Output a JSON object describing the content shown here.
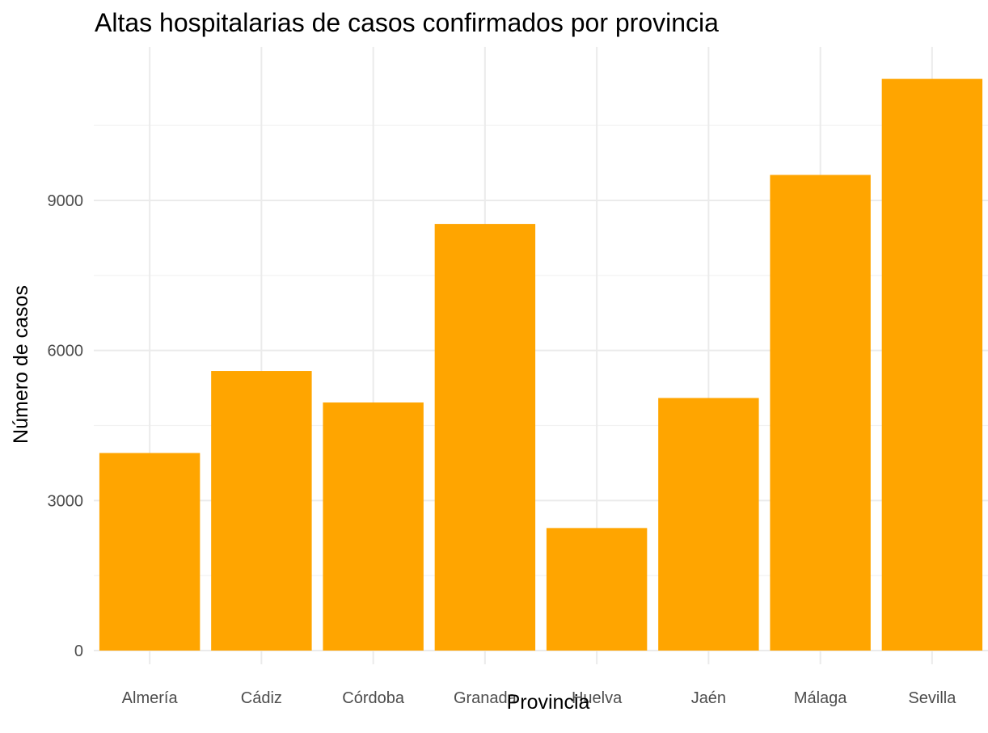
{
  "chart_data": {
    "type": "bar",
    "title": "Altas hospitalarias de casos confirmados por provincia",
    "xlabel": "Provincia",
    "ylabel": "Número de casos",
    "categories": [
      "Almería",
      "Cádiz",
      "Córdoba",
      "Granada",
      "Huelva",
      "Jaén",
      "Málaga",
      "Sevilla"
    ],
    "values": [
      3950,
      5590,
      4960,
      8530,
      2450,
      5050,
      9510,
      11430
    ],
    "ylim": [
      0,
      12000
    ],
    "yticks": [
      0,
      3000,
      6000,
      9000
    ],
    "yticks_labels": [
      "0",
      "3000",
      "6000",
      "9000"
    ],
    "bar_color": "#FFA500",
    "grid": true,
    "legend": "none"
  }
}
